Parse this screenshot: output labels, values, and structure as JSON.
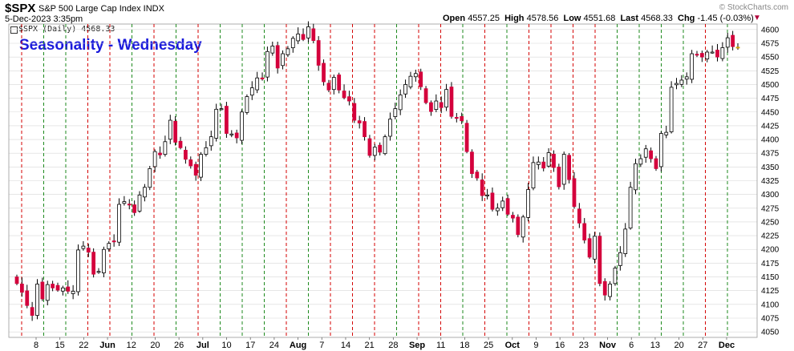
{
  "header": {
    "symbol": "$SPX",
    "name": "S&P 500 Large Cap Index INDX",
    "date": "5-Dec-2023 3:35pm",
    "open_label": "Open",
    "open": "4557.25",
    "high_label": "High",
    "high": "4578.56",
    "low_label": "Low",
    "low": "4551.68",
    "last_label": "Last",
    "last": "4568.33",
    "chg_label": "Chg",
    "chg": "-1.45 (-0.03%)",
    "watermark": "© StockCharts.com",
    "series_label": "$SPX (Daily) 4568.33"
  },
  "colors": {
    "up_fill": "#ffffff",
    "down_fill": "#d4003c",
    "green_line": "#1e8a1e",
    "red_line": "#d40000",
    "grid": "#d8d8d8",
    "last_bar": "#f2c200"
  },
  "chart_data": {
    "type": "candlestick",
    "title": "Seasonality - Wednesday",
    "ylim": [
      4040,
      4610
    ],
    "y_ticks": [
      4050,
      4075,
      4100,
      4125,
      4150,
      4175,
      4200,
      4225,
      4250,
      4275,
      4300,
      4325,
      4350,
      4375,
      4400,
      4425,
      4450,
      4475,
      4500,
      4525,
      4550,
      4575,
      4600
    ],
    "x_ticks": [
      {
        "label": "8",
        "month": false
      },
      {
        "label": "15",
        "month": false
      },
      {
        "label": "22",
        "month": false
      },
      {
        "label": "Jun",
        "month": true
      },
      {
        "label": "12",
        "month": false
      },
      {
        "label": "20",
        "month": false
      },
      {
        "label": "26",
        "month": false
      },
      {
        "label": "Jul",
        "month": true
      },
      {
        "label": "10",
        "month": false
      },
      {
        "label": "17",
        "month": false
      },
      {
        "label": "24",
        "month": false
      },
      {
        "label": "Aug",
        "month": true
      },
      {
        "label": "7",
        "month": false
      },
      {
        "label": "14",
        "month": false
      },
      {
        "label": "21",
        "month": false
      },
      {
        "label": "28",
        "month": false
      },
      {
        "label": "Sep",
        "month": true
      },
      {
        "label": "11",
        "month": false
      },
      {
        "label": "18",
        "month": false
      },
      {
        "label": "25",
        "month": false
      },
      {
        "label": "Oct",
        "month": true
      },
      {
        "label": "9",
        "month": false
      },
      {
        "label": "16",
        "month": false
      },
      {
        "label": "23",
        "month": false
      },
      {
        "label": "Nov",
        "month": true
      },
      {
        "label": "6",
        "month": false
      },
      {
        "label": "13",
        "month": false
      },
      {
        "label": "20",
        "month": false
      },
      {
        "label": "27",
        "month": false
      },
      {
        "label": "Dec",
        "month": true
      }
    ],
    "vertical_markers": [
      {
        "color": "red"
      },
      {
        "color": "green"
      },
      {
        "color": "green"
      },
      {
        "color": "red"
      },
      {
        "color": "red"
      },
      {
        "color": "green"
      },
      {
        "color": "red"
      },
      {
        "color": "green"
      },
      {
        "color": "red"
      },
      {
        "color": "green"
      },
      {
        "color": "green"
      },
      {
        "color": "green"
      },
      {
        "color": "red"
      },
      {
        "color": "green"
      },
      {
        "color": "red"
      },
      {
        "color": "red"
      },
      {
        "color": "red"
      },
      {
        "color": "green"
      },
      {
        "color": "red"
      },
      {
        "color": "red"
      },
      {
        "color": "green"
      },
      {
        "color": "red"
      },
      {
        "color": "green"
      },
      {
        "color": "red"
      },
      {
        "color": "red"
      },
      {
        "color": "red"
      },
      {
        "color": "red"
      },
      {
        "color": "green"
      },
      {
        "color": "green"
      },
      {
        "color": "green"
      },
      {
        "color": "green"
      },
      {
        "color": "red"
      },
      {
        "color": "green"
      }
    ],
    "close": [
      4138,
      4122,
      4098,
      4080,
      4137,
      4110,
      4136,
      4130,
      4126,
      4130,
      4124,
      4124,
      4199,
      4206,
      4195,
      4155,
      4160,
      4200,
      4211,
      4215,
      4282,
      4287,
      4282,
      4267,
      4299,
      4313,
      4347,
      4378,
      4372,
      4396,
      4435,
      4395,
      4385,
      4364,
      4352,
      4335,
      4373,
      4385,
      4405,
      4455,
      4456,
      4411,
      4410,
      4403,
      4450,
      4478,
      4494,
      4512,
      4510,
      4560,
      4570,
      4530,
      4556,
      4565,
      4584,
      4592,
      4582,
      4605,
      4580,
      4535,
      4505,
      4490,
      4513,
      4490,
      4476,
      4470,
      4435,
      4430,
      4405,
      4371,
      4386,
      4377,
      4405,
      4437,
      4456,
      4481,
      4500,
      4515,
      4520,
      4496,
      4467,
      4451,
      4470,
      4458,
      4491,
      4442,
      4440,
      4434,
      4378,
      4338,
      4330,
      4298,
      4299,
      4273,
      4275,
      4288,
      4264,
      4257,
      4227,
      4259,
      4309,
      4358,
      4359,
      4348,
      4376,
      4349,
      4314,
      4373,
      4327,
      4278,
      4248,
      4217,
      4186,
      4224,
      4138,
      4117,
      4137,
      4166,
      4194,
      4237,
      4313,
      4356,
      4365,
      4383,
      4365,
      4347,
      4411,
      4413,
      4495,
      4502,
      4508,
      4514,
      4556,
      4554,
      4550,
      4559,
      4559,
      4550,
      4567,
      4585,
      4569,
      4568
    ]
  }
}
